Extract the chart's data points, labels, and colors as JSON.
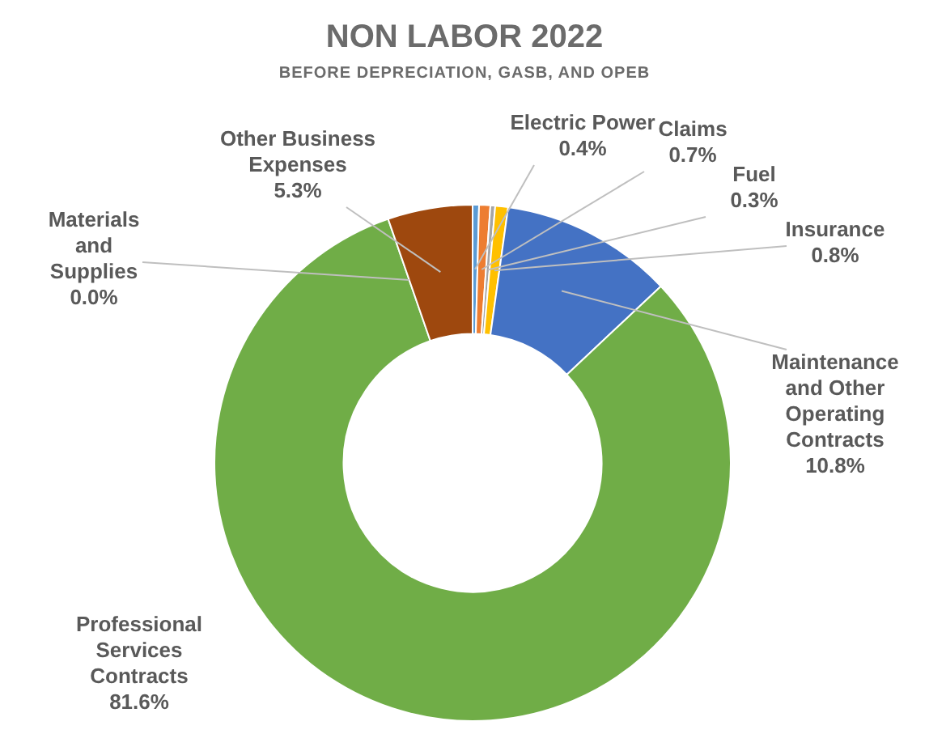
{
  "chart_data": {
    "type": "donut",
    "title": "NON LABOR 2022",
    "subtitle": "BEFORE DEPRECIATION, GASB, AND OPEB",
    "categories": [
      "Electric Power",
      "Claims",
      "Fuel",
      "Insurance",
      "Maintenance and Other Operating Contracts",
      "Professional Services Contracts",
      "Materials and Supplies",
      "Other Business Expenses"
    ],
    "values": [
      0.4,
      0.7,
      0.3,
      0.8,
      10.8,
      81.6,
      0.0,
      5.3
    ],
    "value_labels": [
      "0.4%",
      "0.7%",
      "0.3%",
      "0.8%",
      "10.8%",
      "81.6%",
      "0.0%",
      "5.3%"
    ],
    "colors": [
      "#5b9bd5",
      "#ed7d31",
      "#a5a5a5",
      "#ffc000",
      "#4472c4",
      "#70ad47",
      "#264478",
      "#9e480e"
    ],
    "legend": false
  }
}
